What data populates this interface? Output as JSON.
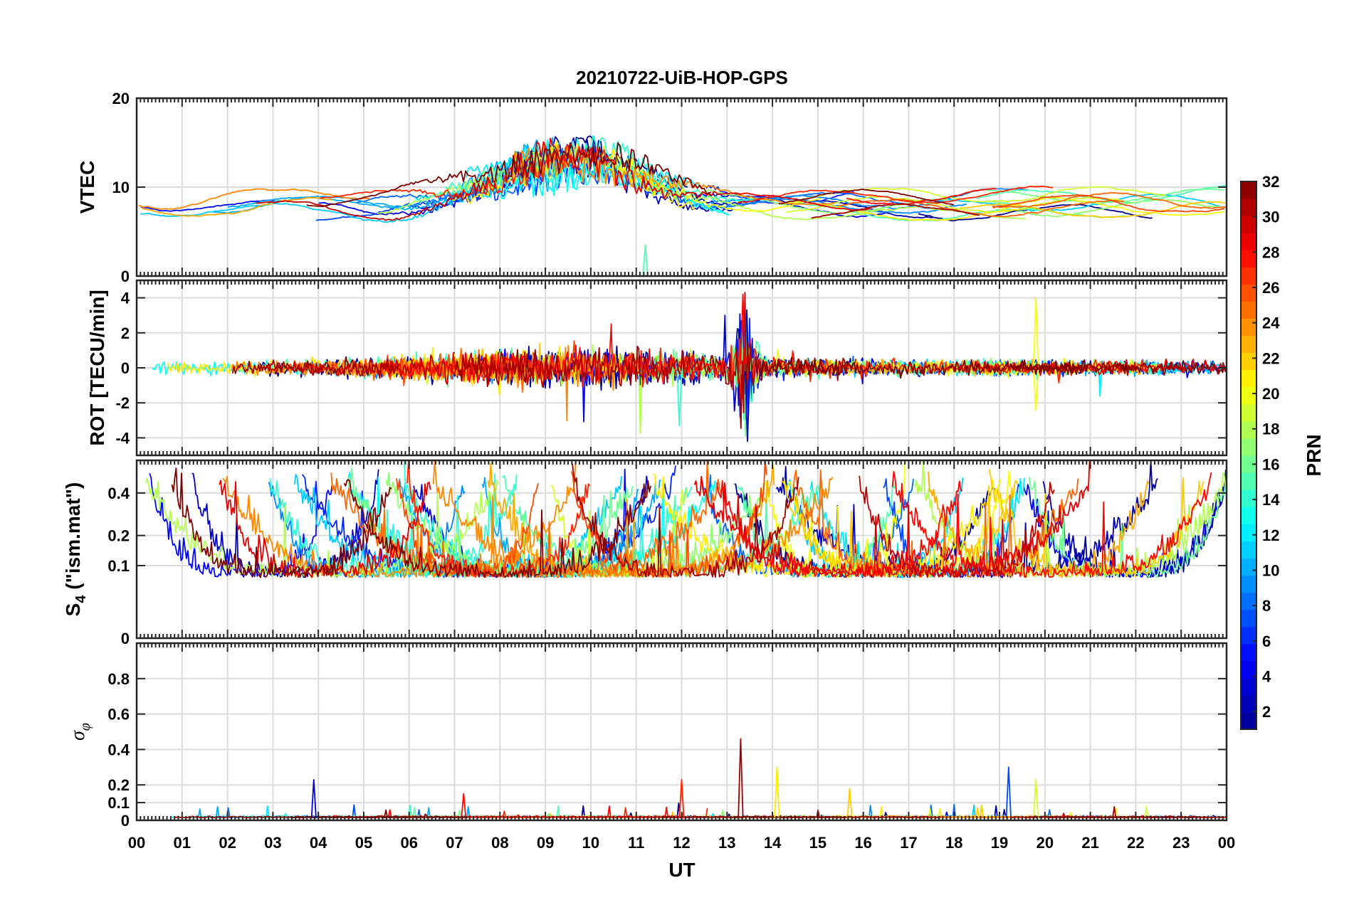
{
  "figure": {
    "title": "20210722-UiB-HOP-GPS",
    "x_label": "UT",
    "x_ticks": [
      "00",
      "01",
      "02",
      "03",
      "04",
      "05",
      "06",
      "07",
      "08",
      "09",
      "10",
      "11",
      "12",
      "13",
      "14",
      "15",
      "16",
      "17",
      "18",
      "19",
      "20",
      "21",
      "22",
      "23",
      "00"
    ]
  },
  "colorbar": {
    "label": "PRN",
    "range": [
      1,
      32
    ],
    "ticks": [
      "2",
      "4",
      "6",
      "8",
      "10",
      "12",
      "14",
      "16",
      "18",
      "20",
      "22",
      "24",
      "26",
      "28",
      "30",
      "32"
    ],
    "colormap": [
      "#00008F",
      "#0000FF",
      "#0080FF",
      "#00FFFF",
      "#80FF80",
      "#FFFF00",
      "#FF8000",
      "#FF0000",
      "#800000"
    ]
  },
  "chart_data": [
    {
      "type": "line",
      "name": "vtec",
      "ylabel": "VTEC",
      "ylim": [
        0,
        20
      ],
      "yticks": [
        "0",
        "10",
        "20"
      ],
      "xlim": [
        0,
        24
      ],
      "grid": true,
      "series_count_by_prn": 32,
      "x_range_hours": [
        0,
        24
      ],
      "y_range_typical": [
        5,
        16.5
      ],
      "notes": "Mostly 6-11 TECU; daytime peak ~16.5 near 09-10 UT"
    },
    {
      "type": "line",
      "name": "rot",
      "ylabel": "ROT [TECU/min]",
      "ylim": [
        -5,
        5
      ],
      "yticks": [
        "-4",
        "-2",
        "0",
        "2",
        "4"
      ],
      "xlim": [
        0,
        24
      ],
      "grid": true,
      "y_range_typical": [
        -1,
        1
      ],
      "notes": "Spikes up to ~4.2 and down to ~-4.2 near 13.4 UT; ~4 near 19.8 UT"
    },
    {
      "type": "line",
      "name": "s4",
      "ylabel": "S4 (\"ism.mat\")",
      "ylabel_main": "S",
      "ylabel_sub": "4",
      "ylabel_rest": " (\"ism.mat\")",
      "ylim": [
        0,
        0.6
      ],
      "yscale": "sqrt",
      "yticks": [
        "0",
        "0.1",
        "0.2",
        "0.4"
      ],
      "ytick_values": [
        0,
        0.1,
        0.2,
        0.4
      ],
      "xlim": [
        0,
        24
      ],
      "grid": true,
      "y_range_typical": [
        0.05,
        0.6
      ]
    },
    {
      "type": "line",
      "name": "sigma_phi",
      "ylabel": "σφ",
      "ylabel_main": "σ",
      "ylabel_sub": "φ",
      "ylim": [
        0,
        1
      ],
      "yticks": [
        "0",
        "0.1",
        "0.2",
        "0.4",
        "0.6",
        "0.8"
      ],
      "ytick_values": [
        0,
        0.1,
        0.2,
        0.4,
        0.6,
        0.8
      ],
      "xlim": [
        0,
        24
      ],
      "grid": true,
      "y_range_typical": [
        0,
        0.05
      ],
      "notes": "Peaks ~0.46 at 13.3 UT, ~0.3 at 14.1 and 19.2 UT, ~0.23 at 3.9 and 12.0 UT"
    }
  ]
}
